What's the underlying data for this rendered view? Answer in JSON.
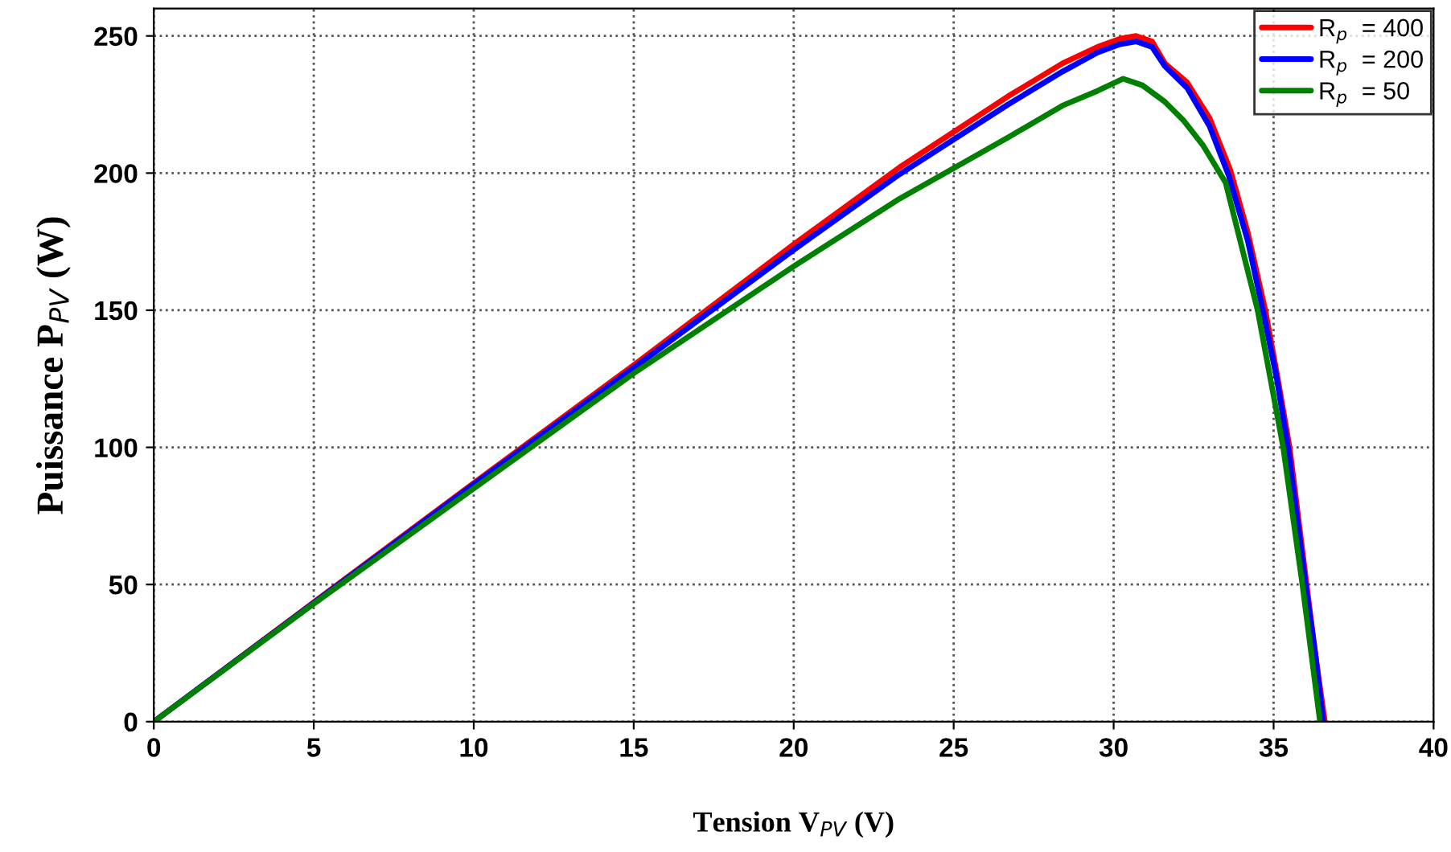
{
  "chart_data": {
    "type": "line",
    "xlabel": "Tension V$_{PV}$ (V)",
    "ylabel": "Puissance P$_{PV}$ (W)",
    "xlim": [
      0,
      40
    ],
    "ylim": [
      0,
      260
    ],
    "xticks": [
      0,
      5,
      10,
      15,
      20,
      25,
      30,
      35,
      40
    ],
    "yticks": [
      0,
      50,
      100,
      150,
      200,
      250
    ],
    "grid": true,
    "legend": "top right",
    "line_style": "solid",
    "series": [
      {
        "name": "R$_{p}$  = 400",
        "color": "#ff0000",
        "x": [
          0,
          5,
          10,
          15,
          20,
          23.3,
          26.7,
          28.4,
          29.5,
          30.2,
          30.7,
          31.2,
          31.6,
          32.3,
          33,
          33.65,
          34.2,
          34.74,
          35.1,
          35.5,
          36.03,
          36.3,
          36.6
        ],
        "values": [
          0,
          43.5,
          87,
          130,
          174,
          202,
          228,
          240,
          246,
          249,
          250,
          248,
          240,
          233,
          220,
          201,
          178,
          150,
          127,
          100,
          50,
          25,
          0
        ]
      },
      {
        "name": "R$_{p}$  = 200",
        "color": "#0000ff",
        "x": [
          0,
          5,
          10,
          15,
          20,
          23.3,
          26.7,
          28.4,
          29.5,
          30.2,
          30.7,
          31.2,
          31.6,
          32.3,
          33,
          33.6,
          34.2,
          34.7,
          35.1,
          35.45,
          36,
          36.3,
          36.55
        ],
        "values": [
          0,
          43.3,
          86.5,
          129,
          172,
          199.5,
          225,
          237,
          244,
          247,
          248,
          246,
          239,
          231,
          217,
          199,
          175,
          148,
          125,
          100,
          50,
          25,
          0
        ]
      },
      {
        "name": "R$_{p}$  = 50",
        "color": "#008000",
        "x": [
          0,
          5,
          10,
          15,
          20,
          23.3,
          26.7,
          28.4,
          29.5,
          30.3,
          30.9,
          31.6,
          32.2,
          32.8,
          33.5,
          34.5,
          35.3,
          35.9,
          36.45
        ],
        "values": [
          0,
          43,
          85,
          127,
          166,
          190.6,
          213,
          224.6,
          230,
          234.4,
          232,
          226,
          219,
          210,
          196.5,
          150,
          100,
          50,
          0
        ]
      }
    ]
  }
}
